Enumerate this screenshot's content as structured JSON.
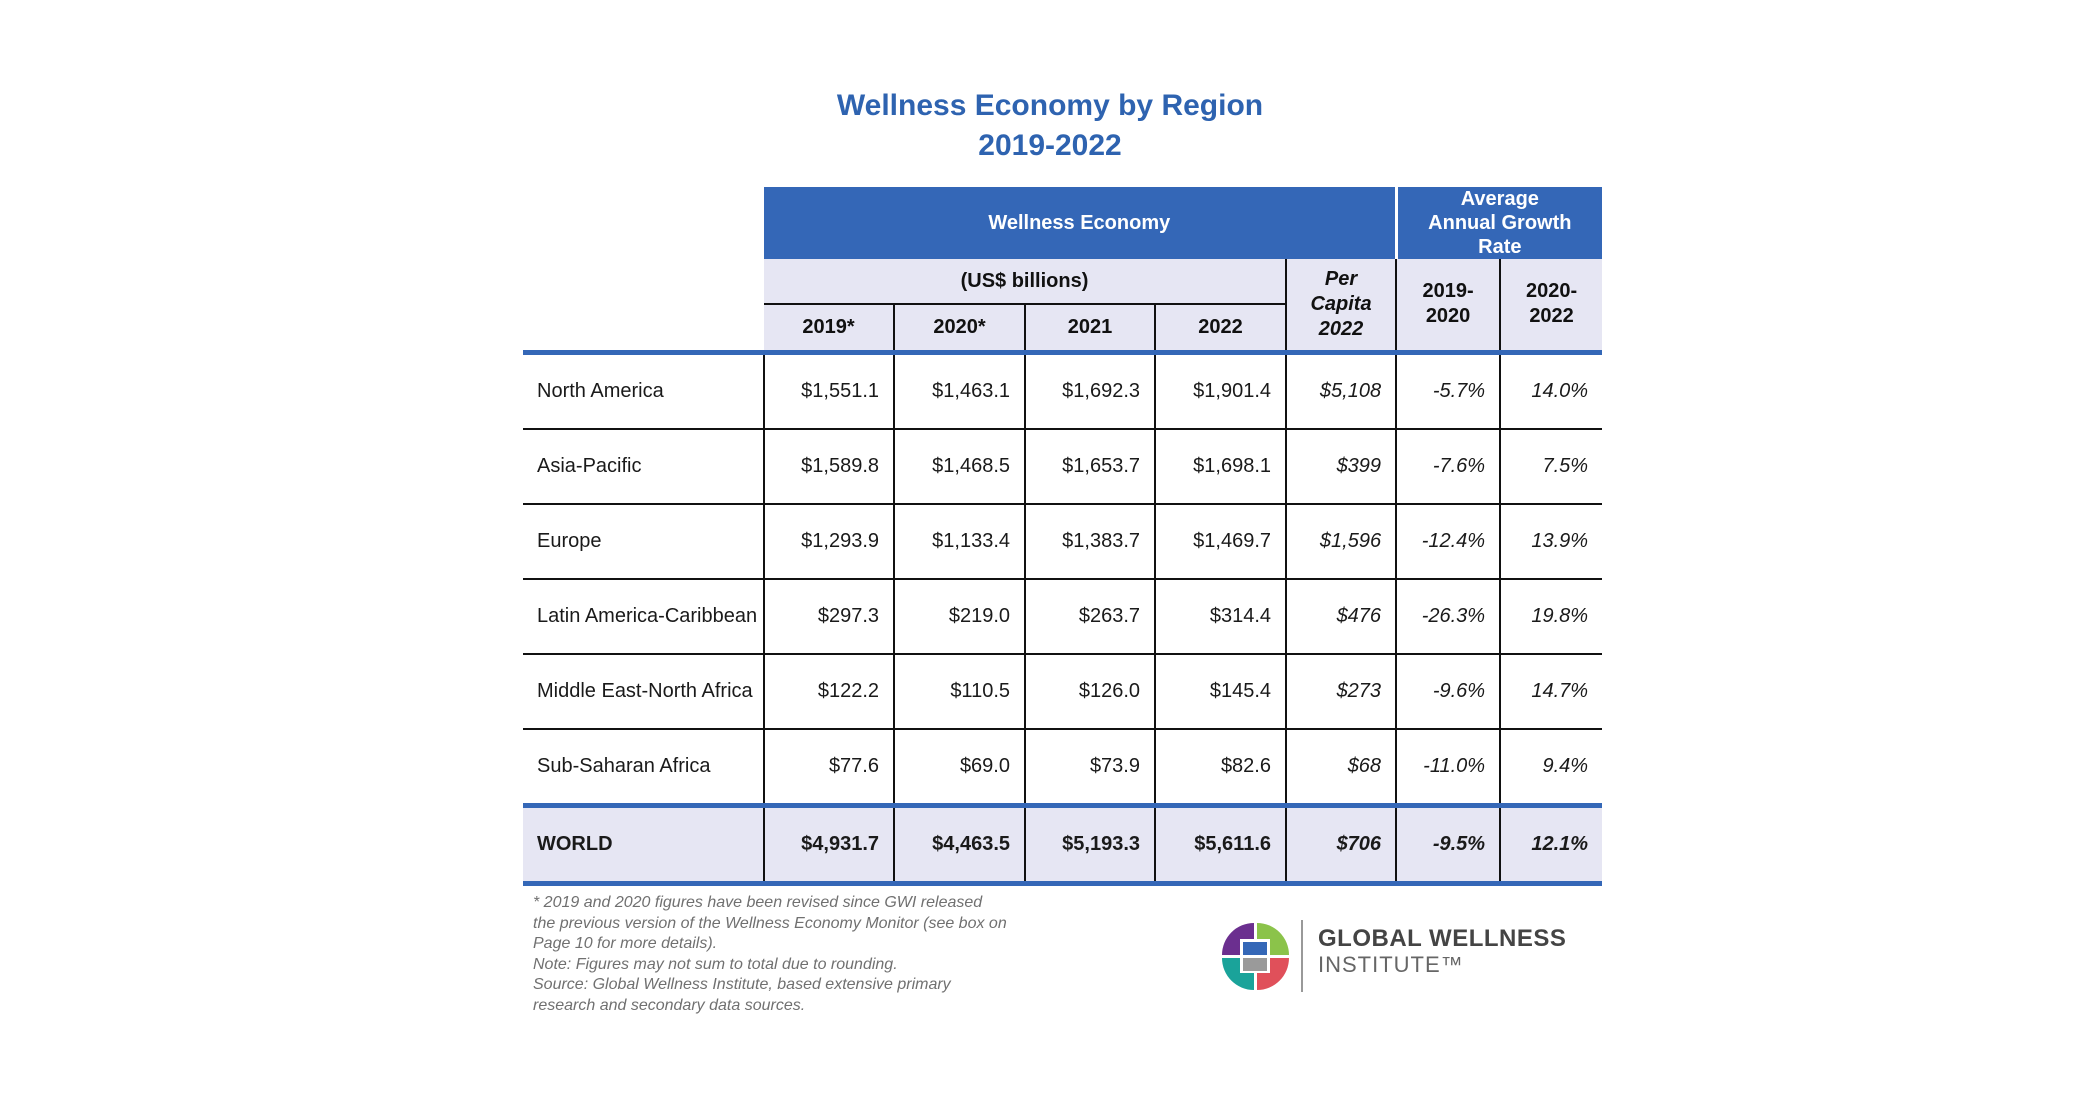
{
  "chart_data": {
    "type": "table",
    "title": "Wellness Economy by Region",
    "subtitle": "2019-2022",
    "group_headers": {
      "wellness_economy": "Wellness Economy",
      "growth_rate": "Average Annual Growth Rate",
      "units": "(US$ billions)",
      "per_capita": "Per Capita 2022"
    },
    "columns": [
      "2019*",
      "2020*",
      "2021",
      "2022"
    ],
    "growth_columns": [
      "2019-2020",
      "2020-2022"
    ],
    "rows": [
      {
        "region": "North America",
        "values": [
          "$1,551.1",
          "$1,463.1",
          "$1,692.3",
          "$1,901.4"
        ],
        "per_capita": "$5,108",
        "growth": [
          "-5.7%",
          "14.0%"
        ]
      },
      {
        "region": "Asia-Pacific",
        "values": [
          "$1,589.8",
          "$1,468.5",
          "$1,653.7",
          "$1,698.1"
        ],
        "per_capita": "$399",
        "growth": [
          "-7.6%",
          "7.5%"
        ]
      },
      {
        "region": "Europe",
        "values": [
          "$1,293.9",
          "$1,133.4",
          "$1,383.7",
          "$1,469.7"
        ],
        "per_capita": "$1,596",
        "growth": [
          "-12.4%",
          "13.9%"
        ]
      },
      {
        "region": "Latin America-Caribbean",
        "values": [
          "$297.3",
          "$219.0",
          "$263.7",
          "$314.4"
        ],
        "per_capita": "$476",
        "growth": [
          "-26.3%",
          "19.8%"
        ]
      },
      {
        "region": "Middle East-North Africa",
        "values": [
          "$122.2",
          "$110.5",
          "$126.0",
          "$145.4"
        ],
        "per_capita": "$273",
        "growth": [
          "-9.6%",
          "14.7%"
        ]
      },
      {
        "region": "Sub-Saharan Africa",
        "values": [
          "$77.6",
          "$69.0",
          "$73.9",
          "$82.6"
        ],
        "per_capita": "$68",
        "growth": [
          "-11.0%",
          "9.4%"
        ]
      }
    ],
    "total": {
      "region": "WORLD",
      "values": [
        "$4,931.7",
        "$4,463.5",
        "$5,193.3",
        "$5,611.6"
      ],
      "per_capita": "$706",
      "growth": [
        "-9.5%",
        "12.1%"
      ]
    }
  },
  "notes": [
    "* 2019 and 2020 figures have been revised since GWI released",
    "the previous version of the Wellness Economy Monitor (see box on",
    "Page 10 for more details).",
    "Note: Figures may not sum to total due to rounding.",
    "Source: Global Wellness Institute, based extensive primary",
    "research and secondary data sources."
  ],
  "logo": {
    "line1": "GLOBAL WELLNESS",
    "line2": "INSTITUTE™",
    "colors": [
      "#6b2f8f",
      "#1aa39a",
      "#8bc34a",
      "#3467b7",
      "#e0505a",
      "#9a9a9a"
    ]
  }
}
